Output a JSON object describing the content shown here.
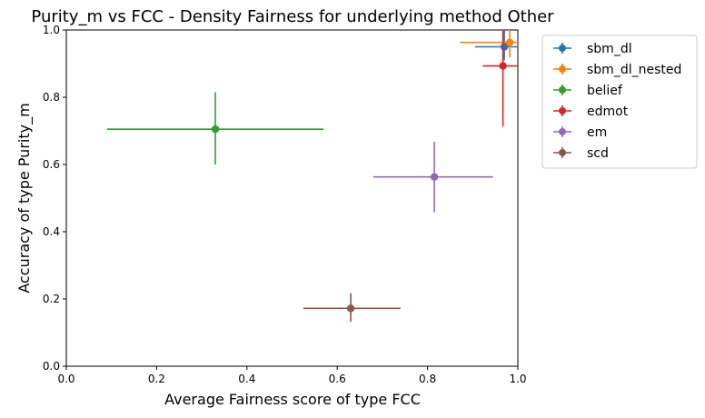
{
  "chart_data": {
    "type": "scatter",
    "title": "Purity_m vs FCC - Density Fairness for underlying method Other",
    "xlabel": "Average Fairness score of type FCC",
    "ylabel": "Accuracy of type Purity_m",
    "xlim": [
      0.0,
      1.0
    ],
    "ylim": [
      0.0,
      1.0
    ],
    "x_ticks": [
      "0.0",
      "0.2",
      "0.4",
      "0.6",
      "0.8",
      "1.0"
    ],
    "y_ticks": [
      "0.0",
      "0.2",
      "0.4",
      "0.6",
      "0.8",
      "1.0"
    ],
    "grid": false,
    "legend_position": "outside-top-right",
    "series": [
      {
        "name": "sbm_dl",
        "color": "#1f77b4",
        "x": 0.97,
        "y": 0.95,
        "xerr": [
          0.065,
          0.04
        ],
        "yerr": [
          0.04,
          0.05
        ]
      },
      {
        "name": "sbm_dl_nested",
        "color": "#ff7f0e",
        "x": 0.982,
        "y": 0.963,
        "xerr": [
          0.11,
          0.05
        ],
        "yerr": [
          0.045,
          0.06
        ]
      },
      {
        "name": "belief",
        "color": "#2ca02c",
        "x": 0.33,
        "y": 0.705,
        "xerr": [
          0.24,
          0.24
        ],
        "yerr": [
          0.105,
          0.11
        ]
      },
      {
        "name": "edmot",
        "color": "#d62728",
        "x": 0.967,
        "y": 0.893,
        "xerr": [
          0.045,
          0.05
        ],
        "yerr": [
          0.18,
          0.11
        ]
      },
      {
        "name": "em",
        "color": "#9467bd",
        "x": 0.815,
        "y": 0.563,
        "xerr": [
          0.135,
          0.13
        ],
        "yerr": [
          0.105,
          0.105
        ]
      },
      {
        "name": "scd",
        "color": "#8c564b",
        "x": 0.63,
        "y": 0.172,
        "xerr": [
          0.105,
          0.11
        ],
        "yerr": [
          0.04,
          0.045
        ]
      }
    ]
  }
}
